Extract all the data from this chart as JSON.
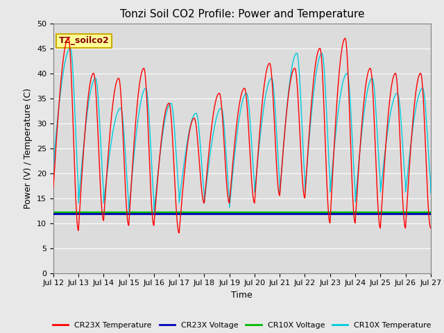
{
  "title": "Tonzi Soil CO2 Profile: Power and Temperature",
  "ylabel": "Power (V) / Temperature (C)",
  "xlabel": "Time",
  "ylim": [
    0,
    50
  ],
  "yticks": [
    0,
    5,
    10,
    15,
    20,
    25,
    30,
    35,
    40,
    45,
    50
  ],
  "xtick_labels": [
    "Jul 12",
    "Jul 13",
    "Jul 14",
    "Jul 15",
    "Jul 16",
    "Jul 17",
    "Jul 18",
    "Jul 19",
    "Jul 20",
    "Jul 21",
    "Jul 22",
    "Jul 23",
    "Jul 24",
    "Jul 25",
    "Jul 26",
    "Jul 27"
  ],
  "cr23x_temp_color": "#FF0000",
  "cr23x_volt_color": "#0000BB",
  "cr10x_volt_color": "#00BB00",
  "cr10x_temp_color": "#00CCDD",
  "cr23x_volt_value": 11.9,
  "cr10x_volt_value": 12.2,
  "background_color": "#E8E8E8",
  "plot_bg_color": "#DCDCDC",
  "annotation_text": "TZ_soilco2",
  "annotation_bg": "#FFFF99",
  "annotation_border": "#CCAA00",
  "legend_entries": [
    "CR23X Temperature",
    "CR23X Voltage",
    "CR10X Voltage",
    "CR10X Temperature"
  ],
  "title_fontsize": 11,
  "label_fontsize": 9,
  "tick_fontsize": 8
}
